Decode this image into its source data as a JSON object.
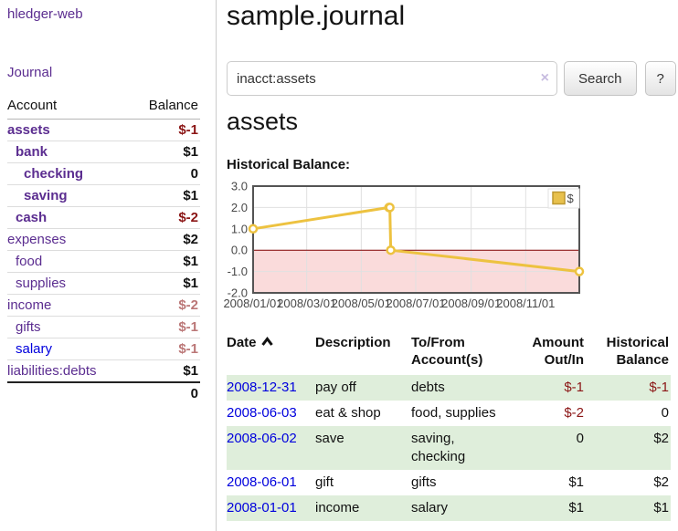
{
  "sidebar": {
    "app_title": "hledger-web",
    "nav": {
      "journal": "Journal"
    },
    "table_headers": {
      "account": "Account",
      "balance": "Balance"
    },
    "accounts": [
      {
        "name": "assets",
        "level": 1,
        "bold": true,
        "balance": "$-1",
        "neg": "strong"
      },
      {
        "name": "bank",
        "level": 2,
        "bold": true,
        "balance": "$1"
      },
      {
        "name": "checking",
        "level": 3,
        "bold": true,
        "balance": "0"
      },
      {
        "name": "saving",
        "level": 3,
        "bold": true,
        "balance": "$1"
      },
      {
        "name": "cash",
        "level": 2,
        "bold": true,
        "balance": "$-2",
        "neg": "strong"
      },
      {
        "name": "expenses",
        "level": 1,
        "bold": false,
        "balance": "$2"
      },
      {
        "name": "food",
        "level": 2,
        "bold": false,
        "balance": "$1"
      },
      {
        "name": "supplies",
        "level": 2,
        "bold": false,
        "balance": "$1"
      },
      {
        "name": "income",
        "level": 1,
        "bold": false,
        "balance": "$-2",
        "neg": "soft"
      },
      {
        "name": "gifts",
        "level": 2,
        "bold": false,
        "balance": "$-1",
        "neg": "soft"
      },
      {
        "name": "salary",
        "level": 2,
        "bold": false,
        "balance": "$-1",
        "neg": "soft",
        "link": "blue"
      },
      {
        "name": "liabilities:debts",
        "level": 1,
        "bold": false,
        "balance": "$1",
        "last": true
      }
    ],
    "total": "0"
  },
  "main": {
    "title": "sample.journal",
    "search": {
      "value": "inacct:assets",
      "clear_icon": "×",
      "button_label": "Search",
      "help_label": "?"
    },
    "account_heading": "assets",
    "chart_label": "Historical Balance:"
  },
  "chart_data": {
    "type": "line",
    "title": "Historical Balance",
    "legend": {
      "label": "$",
      "position": "top-right"
    },
    "ylim": [
      -2,
      3
    ],
    "yticks": [
      {
        "v": 3,
        "label": "3.0"
      },
      {
        "v": 2,
        "label": "2.0"
      },
      {
        "v": 1,
        "label": "1.0"
      },
      {
        "v": 0,
        "label": "0.0"
      },
      {
        "v": -1,
        "label": "-1.0"
      },
      {
        "v": -2,
        "label": "-2.0"
      }
    ],
    "x_domain_days": [
      0,
      365
    ],
    "xticks": [
      {
        "day": 0,
        "label": "2008/01/01"
      },
      {
        "day": 60,
        "label": "2008/03/01"
      },
      {
        "day": 121,
        "label": "2008/05/01"
      },
      {
        "day": 182,
        "label": "2008/07/01"
      },
      {
        "day": 244,
        "label": "2008/09/01"
      },
      {
        "day": 305,
        "label": "2008/11/01"
      }
    ],
    "series": [
      {
        "name": "$",
        "color": "#edc240",
        "points": [
          {
            "date": "2008-01-01",
            "day": 0,
            "value": 1
          },
          {
            "date": "2008-06-01",
            "day": 152,
            "value": 2
          },
          {
            "date": "2008-06-02",
            "day": 153,
            "value": 2
          },
          {
            "date": "2008-06-03",
            "day": 154,
            "value": 0
          },
          {
            "date": "2008-12-31",
            "day": 365,
            "value": -1
          }
        ]
      }
    ],
    "grid": true,
    "zero_line_color": "#800000",
    "negative_region_color": "#fadbdb",
    "gridline_color": "#e0e0e0",
    "border_color": "#545454",
    "tick_label_color": "#484848"
  },
  "transactions": {
    "headers": [
      {
        "key": "date",
        "line1": "Date",
        "line2": "",
        "align": "left",
        "sorted": "asc"
      },
      {
        "key": "description",
        "line1": "Description",
        "line2": "",
        "align": "left"
      },
      {
        "key": "accounts",
        "line1": "To/From",
        "line2": "Account(s)",
        "align": "left"
      },
      {
        "key": "amount",
        "line1": "Amount",
        "line2": "Out/In",
        "align": "right"
      },
      {
        "key": "balance",
        "line1": "Historical",
        "line2": "Balance",
        "align": "right"
      }
    ],
    "rows": [
      {
        "date": "2008-12-31",
        "description": "pay off",
        "accounts": "debts",
        "amount": "$-1",
        "amount_neg": true,
        "balance": "$-1",
        "balance_neg": true
      },
      {
        "date": "2008-06-03",
        "description": "eat & shop",
        "accounts": "food, supplies",
        "amount": "$-2",
        "amount_neg": true,
        "balance": "0",
        "balance_neg": false
      },
      {
        "date": "2008-06-02",
        "description": "save",
        "accounts": "saving,\nchecking",
        "amount": "0",
        "amount_neg": false,
        "balance": "$2",
        "balance_neg": false
      },
      {
        "date": "2008-06-01",
        "description": "gift",
        "accounts": "gifts",
        "amount": "$1",
        "amount_neg": false,
        "balance": "$2",
        "balance_neg": false
      },
      {
        "date": "2008-01-01",
        "description": "income",
        "accounts": "salary",
        "amount": "$1",
        "amount_neg": false,
        "balance": "$1",
        "balance_neg": false
      }
    ]
  },
  "colors": {
    "accent_purple": "#5b2d90",
    "link_blue": "#0000dd",
    "negative_strong": "#8b1515",
    "negative_soft": "#bb7777",
    "row_green": "#dfeedb",
    "chart_line": "#edc240"
  }
}
